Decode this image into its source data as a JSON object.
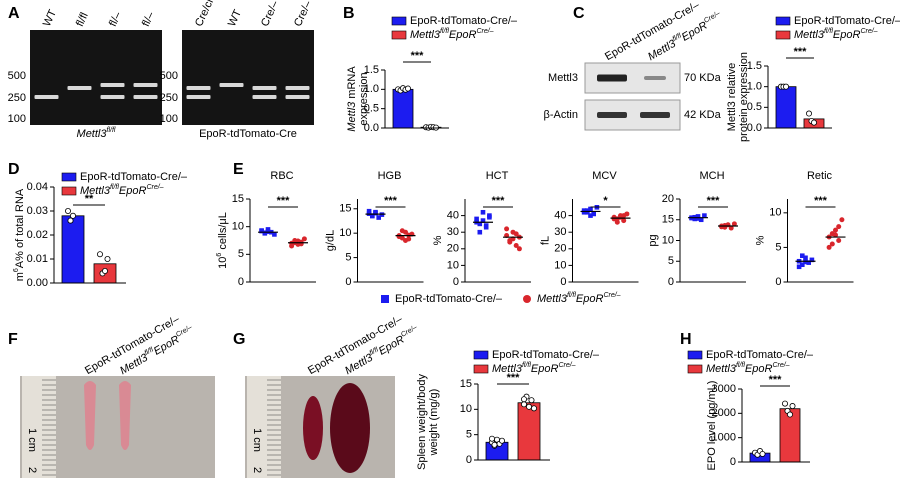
{
  "panels": [
    "A",
    "B",
    "C",
    "D",
    "E",
    "F",
    "G",
    "H"
  ],
  "gels": [
    {
      "lanes": [
        "WT",
        "fl/fl",
        "fl/–",
        "fl/–"
      ],
      "markers": [
        500,
        250,
        100
      ],
      "caption": [
        {
          "text": "Mettl3",
          "style": "i"
        },
        {
          "text": "fl/fl",
          "style": "i sup"
        }
      ]
    },
    {
      "lanes": [
        "Cre/cre",
        "WT",
        "Cre/–",
        "Cre/–"
      ],
      "markers": [
        500,
        250,
        100
      ],
      "caption": "EpoR-tdTomato-Cre"
    }
  ],
  "blot": {
    "lanes": [
      "EpoR-tdTomato-Cre/–",
      [
        {
          "text": "Mettl3",
          "style": "i"
        },
        {
          "text": "fl/fl",
          "style": "i sup"
        },
        {
          "text": "EpoR",
          "style": "i"
        },
        {
          "text": "Cre/–",
          "style": "i sup"
        }
      ]
    ],
    "rows": [
      {
        "protein": "Mettl3",
        "size": "70 KDa"
      },
      {
        "protein": "β-Actin",
        "size": "42 KDa"
      }
    ]
  },
  "photos": [
    {
      "lanes": [
        "EpoR-tdTomato-Cre/–",
        [
          {
            "text": "Mettl3",
            "style": "i"
          },
          {
            "text": "fl/fl",
            "style": "i sup"
          },
          {
            "text": "EpoR",
            "style": "i"
          },
          {
            "text": "Cre/–",
            "style": "i sup"
          }
        ]
      ],
      "ruler": [
        "1 cm",
        "2"
      ]
    },
    {
      "lanes": [
        "EpoR-tdTomato-Cre/–",
        [
          {
            "text": "Mettl3",
            "style": "i"
          },
          {
            "text": "fl/fl",
            "style": "i sup"
          },
          {
            "text": "EpoR",
            "style": "i"
          },
          {
            "text": "Cre/–",
            "style": "i sup"
          }
        ]
      ],
      "ruler": [
        "1 cm",
        "2"
      ]
    }
  ],
  "e_legend": [
    {
      "name": "EpoR-tdTomato-Cre/–",
      "color": "#1c1cf0",
      "marker": "square"
    },
    {
      "name": [
        {
          "text": "Mettl3",
          "style": "i"
        },
        {
          "text": "fl/fl",
          "style": "i sup"
        },
        {
          "text": "EpoR",
          "style": "i"
        },
        {
          "text": "Cre/–",
          "style": "i sup"
        }
      ],
      "color": "#d9262c",
      "marker": "circle"
    }
  ],
  "chart_data": [
    {
      "type": "bar",
      "ylabel": [
        [
          {
            "text": "Mettl3",
            "style": "i"
          },
          {
            "text": " mRNA"
          }
        ],
        "expression"
      ],
      "ylim": [
        0,
        1.5
      ],
      "yticks": [
        {
          "value": 0,
          "label": "0.0"
        },
        0.5,
        {
          "value": 1,
          "label": "1.0"
        },
        1.5
      ],
      "significance": "***",
      "series": [
        {
          "name": "EpoR-tdTomato-Cre/–",
          "color": "#1c1cf0",
          "values": [
            1.0
          ],
          "points": [
            1.0,
            0.97,
            1.03,
            0.99,
            1.02
          ]
        },
        {
          "name": [
            {
              "text": "Mettl3",
              "style": "i"
            },
            {
              "text": "fl/fl",
              "style": "i sup"
            },
            {
              "text": "EpoR",
              "style": "i"
            },
            {
              "text": "Cre/–",
              "style": "i sup"
            }
          ],
          "color": "#e8383d",
          "values": [
            0.02
          ],
          "points": [
            0.02,
            0.01,
            0.03,
            0.02,
            0.01
          ]
        }
      ]
    },
    {
      "type": "bar",
      "ylabel": [
        "Mettl3 relative",
        "protein expression"
      ],
      "ylim": [
        0,
        1.5
      ],
      "yticks": [
        {
          "value": 0,
          "label": "0.0"
        },
        0.5,
        {
          "value": 1,
          "label": "1.0"
        },
        1.5
      ],
      "significance": "***",
      "series": [
        {
          "name": "EpoR-tdTomato-Cre/–",
          "color": "#1c1cf0",
          "values": [
            1.0
          ],
          "points": [
            1.0,
            1.0,
            1.0
          ]
        },
        {
          "name": [
            {
              "text": "Mettl3",
              "style": "i"
            },
            {
              "text": "fl/fl",
              "style": "i sup"
            },
            {
              "text": "EpoR",
              "style": "i"
            },
            {
              "text": "Cre/–",
              "style": "i sup"
            }
          ],
          "color": "#e8383d",
          "values": [
            0.22
          ],
          "points": [
            0.35,
            0.17,
            0.13
          ]
        }
      ]
    },
    {
      "type": "bar",
      "ylabel": [
        [
          {
            "text": "m"
          },
          {
            "text": "6",
            "style": "sup"
          },
          {
            "text": "A% of total RNA"
          }
        ]
      ],
      "ylim": [
        0,
        0.04
      ],
      "yticks": [
        {
          "value": 0,
          "label": "0.00"
        },
        0.01,
        0.02,
        0.03,
        {
          "value": 0.04,
          "label": "0.04"
        }
      ],
      "significance": "**",
      "series": [
        {
          "name": "EpoR-tdTomato-Cre/–",
          "color": "#1c1cf0",
          "values": [
            0.028
          ],
          "points": [
            0.03,
            0.026,
            0.028
          ]
        },
        {
          "name": [
            {
              "text": "Mettl3",
              "style": "i"
            },
            {
              "text": "fl/fl",
              "style": "i sup"
            },
            {
              "text": "EpoR",
              "style": "i"
            },
            {
              "text": "Cre/–",
              "style": "i sup"
            }
          ],
          "color": "#e8383d",
          "values": [
            0.008
          ],
          "points": [
            0.012,
            0.004,
            0.005,
            0.01
          ]
        }
      ]
    },
    {
      "type": "dot",
      "title": "RBC",
      "ylabel": [
        [
          {
            "text": "10"
          },
          {
            "text": "6",
            "style": "sup"
          },
          {
            "text": " cells/μL"
          }
        ]
      ],
      "ylim": [
        0,
        15
      ],
      "yticks": [
        0,
        5,
        10,
        15
      ],
      "significance": "***",
      "series": [
        {
          "color": "#1c1cf0",
          "marker": "square",
          "values": [
            9.2,
            8.8,
            9.5,
            9.0,
            8.6,
            9.3,
            8.9,
            9.1
          ],
          "mean": 9.0
        },
        {
          "color": "#d9262c",
          "marker": "circle",
          "values": [
            7.0,
            7.5,
            6.8,
            7.2,
            7.8,
            6.5,
            7.1,
            7.4,
            6.9
          ],
          "mean": 7.1
        }
      ]
    },
    {
      "type": "dot",
      "title": "HGB",
      "ylabel": [
        "g/dL"
      ],
      "ylim": [
        0,
        17
      ],
      "yticks": [
        0,
        5,
        10,
        15
      ],
      "significance": "***",
      "series": [
        {
          "color": "#1c1cf0",
          "marker": "square",
          "values": [
            14.0,
            13.5,
            14.3,
            13.2,
            13.8,
            14.5,
            13.6,
            14.1
          ],
          "mean": 13.9
        },
        {
          "color": "#d9262c",
          "marker": "circle",
          "values": [
            9.5,
            9.0,
            10.2,
            8.8,
            9.8,
            9.3,
            10.5,
            8.5,
            9.6
          ],
          "mean": 9.5
        }
      ]
    },
    {
      "type": "dot",
      "title": "HCT",
      "ylabel": [
        "%"
      ],
      "ylim": [
        0,
        50
      ],
      "yticks": [
        0,
        10,
        20,
        30,
        40
      ],
      "significance": "***",
      "series": [
        {
          "color": "#1c1cf0",
          "marker": "square",
          "values": [
            38,
            35,
            42,
            33,
            40,
            36,
            30,
            37,
            34,
            39
          ],
          "mean": 36
        },
        {
          "color": "#d9262c",
          "marker": "circle",
          "values": [
            28,
            25,
            30,
            22,
            27,
            32,
            24,
            26,
            29,
            20
          ],
          "mean": 27
        }
      ]
    },
    {
      "type": "dot",
      "title": "MCV",
      "ylabel": [
        "fL"
      ],
      "ylim": [
        0,
        50
      ],
      "yticks": [
        0,
        10,
        20,
        30,
        40
      ],
      "significance": "*",
      "series": [
        {
          "color": "#1c1cf0",
          "marker": "square",
          "values": [
            43,
            42,
            44,
            41,
            45,
            42,
            43,
            40
          ],
          "mean": 42.5
        },
        {
          "color": "#d9262c",
          "marker": "circle",
          "values": [
            39,
            38,
            40,
            37,
            41,
            38,
            36,
            39,
            40
          ],
          "mean": 38.5
        }
      ]
    },
    {
      "type": "dot",
      "title": "MCH",
      "ylabel": [
        "pg"
      ],
      "ylim": [
        0,
        20
      ],
      "yticks": [
        0,
        5,
        10,
        15,
        20
      ],
      "significance": "***",
      "series": [
        {
          "color": "#1c1cf0",
          "marker": "square",
          "values": [
            15.5,
            15.2,
            15.8,
            15.0,
            16.0,
            15.4,
            15.6,
            15.3
          ],
          "mean": 15.5
        },
        {
          "color": "#d9262c",
          "marker": "circle",
          "values": [
            13.5,
            13.2,
            13.8,
            13.0,
            14.0,
            13.3,
            13.6
          ],
          "mean": 13.5
        }
      ]
    },
    {
      "type": "dot",
      "title": "Retic",
      "ylabel": [
        "%"
      ],
      "ylim": [
        0,
        12
      ],
      "yticks": [
        0,
        5,
        10
      ],
      "significance": "***",
      "series": [
        {
          "color": "#1c1cf0",
          "marker": "square",
          "values": [
            3.0,
            2.5,
            3.5,
            2.8,
            3.2,
            2.2,
            3.8,
            2.9
          ],
          "mean": 3.0
        },
        {
          "color": "#d9262c",
          "marker": "circle",
          "values": [
            6.5,
            5.5,
            7.5,
            6.0,
            9.0,
            5.0,
            7.0,
            6.8,
            8.0
          ],
          "mean": 6.5
        }
      ]
    },
    {
      "type": "bar",
      "ylabel": [
        "Spleen weight/body",
        "weight (mg/g)"
      ],
      "ylim": [
        0,
        15
      ],
      "yticks": [
        0,
        5,
        10,
        15
      ],
      "significance": "***",
      "series": [
        {
          "name": "EpoR-tdTomato-Cre/–",
          "color": "#1c1cf0",
          "values": [
            3.5
          ],
          "points": [
            3.5,
            2.8,
            4.0,
            3.2,
            3.8,
            4.2,
            3.0
          ]
        },
        {
          "name": [
            {
              "text": "Mettl3",
              "style": "i"
            },
            {
              "text": "fl/fl",
              "style": "i sup"
            },
            {
              "text": "EpoR",
              "style": "i"
            },
            {
              "text": "Cre/–",
              "style": "i sup"
            }
          ],
          "color": "#e8383d",
          "values": [
            11.3
          ],
          "points": [
            11,
            12.5,
            10.5,
            11.8,
            10.2,
            12.0
          ]
        }
      ]
    },
    {
      "type": "bar",
      "ylabel": [
        "EPO level (pg/mL)"
      ],
      "ylim": [
        0,
        3000
      ],
      "yticks": [
        0,
        1000,
        2000,
        3000
      ],
      "significance": "***",
      "series": [
        {
          "name": "EpoR-tdTomato-Cre/–",
          "color": "#1c1cf0",
          "values": [
            365
          ],
          "points": [
            380,
            300,
            450,
            330
          ]
        },
        {
          "name": [
            {
              "text": "Mettl3",
              "style": "i"
            },
            {
              "text": "fl/fl",
              "style": "i sup"
            },
            {
              "text": "EpoR",
              "style": "i"
            },
            {
              "text": "Cre/–",
              "style": "i sup"
            }
          ],
          "color": "#e8383d",
          "values": [
            2190
          ],
          "points": [
            2400,
            2100,
            1950,
            2300
          ]
        }
      ]
    }
  ]
}
